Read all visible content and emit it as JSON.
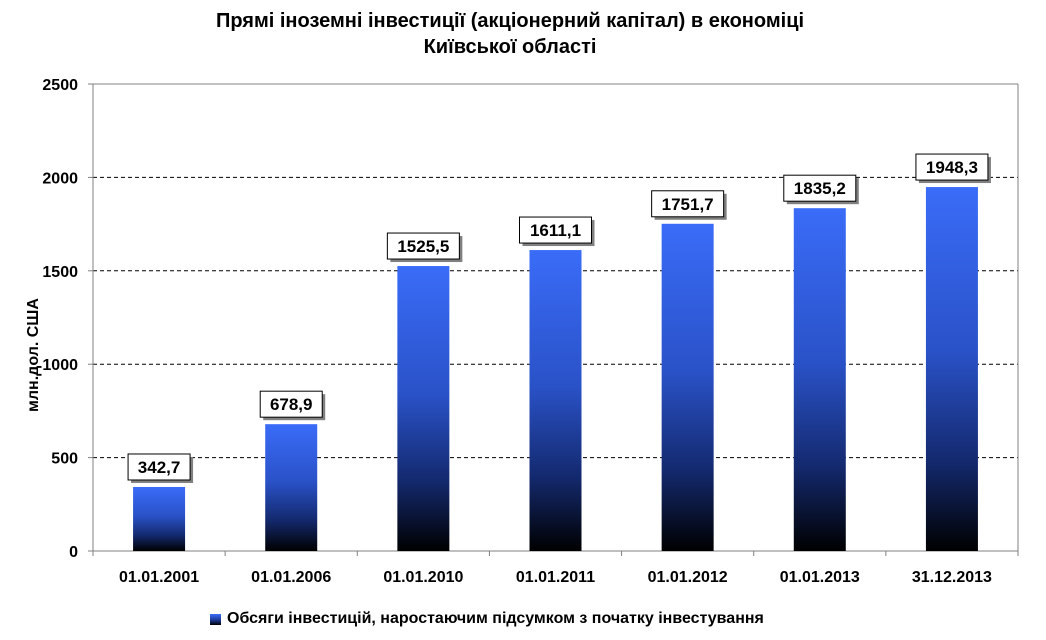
{
  "chart_data": {
    "type": "bar",
    "title_lines": [
      "Прямі іноземні інвестиції (акціонерний капітал) в економіці",
      "Київської області"
    ],
    "xlabel": "",
    "ylabel": "млн.дол. США",
    "ylim": [
      0,
      2500
    ],
    "yticks": [
      0,
      500,
      1000,
      1500,
      2000,
      2500
    ],
    "grid": "horizontal dashed",
    "legend_position": "bottom",
    "categories": [
      "01.01.2001",
      "01.01.2006",
      "01.01.2010",
      "01.01.2011",
      "01.01.2012",
      "01.01.2013",
      "31.12.2013"
    ],
    "series": [
      {
        "name": "Обсяги інвестицій, наростаючим підсумком з початку інвестування",
        "values": [
          342.7,
          678.9,
          1525.5,
          1611.1,
          1751.7,
          1835.2,
          1948.3
        ],
        "value_labels": [
          "342,7",
          "678,9",
          "1525,5",
          "1611,1",
          "1751,7",
          "1835,2",
          "1948,3"
        ],
        "color_top": "#3a6cf8",
        "color_bottom": "#000000"
      }
    ]
  }
}
